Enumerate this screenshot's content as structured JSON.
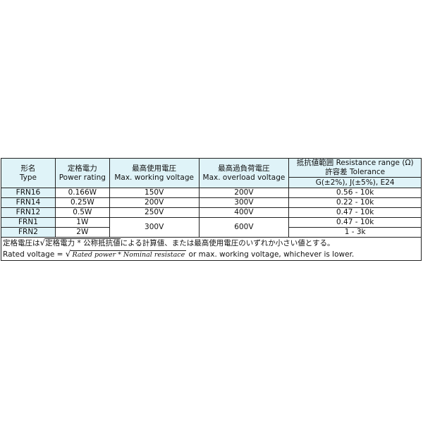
{
  "headers": {
    "type_ja": "形名",
    "type_en": "Type",
    "power_ja": "定格電力",
    "power_en": "Power rating",
    "working_ja": "最高使用電圧",
    "working_en": "Max. working voltage",
    "overload_ja": "最高過負荷電圧",
    "overload_en": "Max. overload voltage",
    "range_ja": "抵抗値範囲 Resistance range (Ω)",
    "tol": "許容差 Tolerance",
    "tol_values": "G(±2%), J(±5%), E24"
  },
  "rows": [
    {
      "type": "FRN16",
      "power": "0.166W",
      "working": "150V",
      "overload": "200V",
      "range": "0.56 - 10k"
    },
    {
      "type": "FRN14",
      "power": "0.25W",
      "working": "200V",
      "overload": "300V",
      "range": "0.22 - 10k"
    },
    {
      "type": "FRN12",
      "power": "0.5W",
      "working": "250V",
      "overload": "400V",
      "range": "0.47 - 10k"
    },
    {
      "type": "FRN1",
      "power": "1W",
      "working": "300V",
      "overload": "600V",
      "range": "0.47 - 10k"
    },
    {
      "type": "FRN2",
      "power": "2W",
      "range": "1 - 3k"
    }
  ],
  "notes": {
    "ja_pre": "定格電圧は",
    "ja_sqrt": "定格電力 * 公称抵抗値",
    "ja_post": "による計算値、または最高使用電圧のいずれか小さい値とする。",
    "en_pre": "Rated voltage = ",
    "en_sqrt": "Rated power  * Nominal resistace",
    "en_post": " or max. working voltage, whichever is lower."
  }
}
